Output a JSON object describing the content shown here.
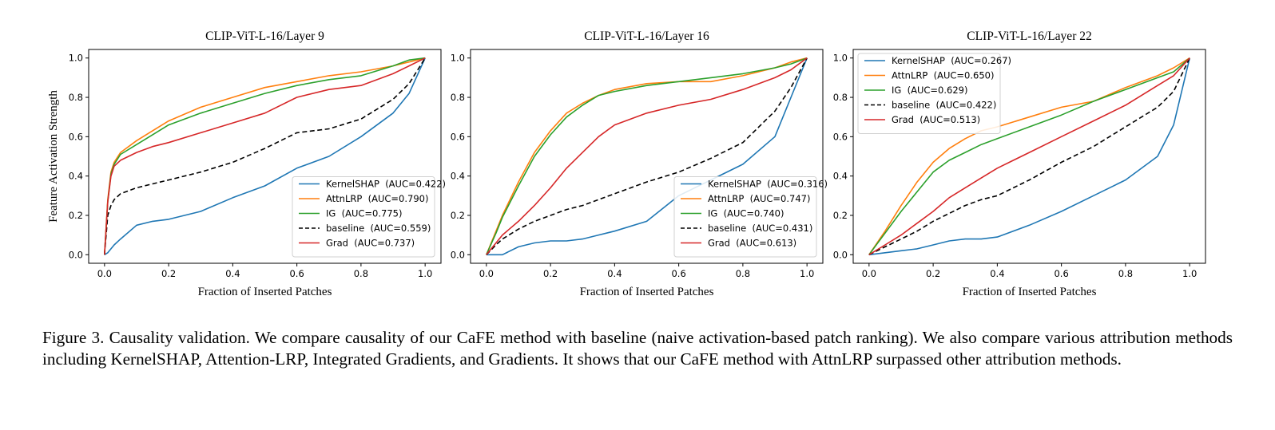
{
  "figure": {
    "caption": "Figure 3. Causality validation. We compare causality of our CaFE method with baseline (naive activation-based patch ranking). We also compare various attribution methods including KernelSHAP, Attention-LRP, Integrated Gradients, and Gradients. It shows that our CaFE method with AttnLRP surpassed other attribution methods.",
    "colors": {
      "KernelSHAP": "#1f77b4",
      "AttnLRP": "#ff7f0e",
      "IG": "#2ca02c",
      "baseline": "#000000",
      "Grad": "#d62728"
    }
  },
  "chart_data": [
    {
      "type": "line",
      "title": "CLIP-ViT-L-16/Layer 9",
      "xlabel": "Fraction of Inserted Patches",
      "ylabel": "Feature Activation Strength",
      "xlim": [
        0,
        1
      ],
      "ylim": [
        0,
        1
      ],
      "xticks": [
        "0.0",
        "0.2",
        "0.4",
        "0.6",
        "0.8",
        "1.0"
      ],
      "yticks": [
        "0.0",
        "0.2",
        "0.4",
        "0.6",
        "0.8",
        "1.0"
      ],
      "legend_position": "lower-right",
      "x": [
        0,
        0.01,
        0.02,
        0.03,
        0.05,
        0.1,
        0.15,
        0.2,
        0.3,
        0.4,
        0.5,
        0.6,
        0.7,
        0.8,
        0.9,
        0.95,
        1.0
      ],
      "series": [
        {
          "name": "KernelSHAP",
          "legend": "KernelSHAP  (AUC=0.422)",
          "style": "solid",
          "values": [
            0.0,
            0.01,
            0.03,
            0.05,
            0.08,
            0.15,
            0.17,
            0.18,
            0.22,
            0.29,
            0.35,
            0.44,
            0.5,
            0.6,
            0.72,
            0.82,
            1.0
          ]
        },
        {
          "name": "AttnLRP",
          "legend": "AttnLRP  (AUC=0.790)",
          "style": "solid",
          "values": [
            0.0,
            0.28,
            0.42,
            0.47,
            0.52,
            0.58,
            0.63,
            0.68,
            0.75,
            0.8,
            0.85,
            0.88,
            0.91,
            0.93,
            0.96,
            0.98,
            1.0
          ]
        },
        {
          "name": "IG",
          "legend": "IG  (AUC=0.775)",
          "style": "solid",
          "values": [
            0.0,
            0.27,
            0.41,
            0.46,
            0.51,
            0.56,
            0.61,
            0.66,
            0.72,
            0.77,
            0.82,
            0.86,
            0.89,
            0.91,
            0.96,
            0.99,
            1.0
          ]
        },
        {
          "name": "baseline",
          "legend": "baseline  (AUC=0.559)",
          "style": "dashed",
          "values": [
            0.0,
            0.2,
            0.25,
            0.28,
            0.31,
            0.34,
            0.36,
            0.38,
            0.42,
            0.47,
            0.54,
            0.62,
            0.64,
            0.69,
            0.79,
            0.87,
            1.0
          ]
        },
        {
          "name": "Grad",
          "legend": "Grad  (AUC=0.737)",
          "style": "solid",
          "values": [
            0.0,
            0.27,
            0.4,
            0.45,
            0.48,
            0.52,
            0.55,
            0.57,
            0.62,
            0.67,
            0.72,
            0.8,
            0.84,
            0.86,
            0.92,
            0.96,
            1.0
          ]
        }
      ]
    },
    {
      "type": "line",
      "title": "CLIP-ViT-L-16/Layer 16",
      "xlabel": "Fraction of Inserted Patches",
      "ylabel": "",
      "xlim": [
        0,
        1
      ],
      "ylim": [
        0,
        1
      ],
      "xticks": [
        "0.0",
        "0.2",
        "0.4",
        "0.6",
        "0.8",
        "1.0"
      ],
      "yticks": [
        "0.0",
        "0.2",
        "0.4",
        "0.6",
        "0.8",
        "1.0"
      ],
      "legend_position": "lower-right",
      "x": [
        0,
        0.03,
        0.05,
        0.1,
        0.15,
        0.2,
        0.25,
        0.3,
        0.35,
        0.4,
        0.5,
        0.6,
        0.7,
        0.8,
        0.9,
        0.95,
        1.0
      ],
      "series": [
        {
          "name": "KernelSHAP",
          "legend": "KernelSHAP  (AUC=0.316)",
          "style": "solid",
          "values": [
            0.0,
            0.0,
            0.0,
            0.04,
            0.06,
            0.07,
            0.07,
            0.08,
            0.1,
            0.12,
            0.17,
            0.3,
            0.38,
            0.46,
            0.6,
            0.8,
            1.0
          ]
        },
        {
          "name": "AttnLRP",
          "legend": "AttnLRP  (AUC=0.747)",
          "style": "solid",
          "values": [
            0.0,
            0.12,
            0.2,
            0.37,
            0.52,
            0.63,
            0.72,
            0.77,
            0.81,
            0.84,
            0.87,
            0.88,
            0.88,
            0.91,
            0.95,
            0.98,
            1.0
          ]
        },
        {
          "name": "IG",
          "legend": "IG  (AUC=0.740)",
          "style": "solid",
          "values": [
            0.0,
            0.11,
            0.19,
            0.35,
            0.5,
            0.61,
            0.7,
            0.76,
            0.81,
            0.83,
            0.86,
            0.88,
            0.9,
            0.92,
            0.95,
            0.97,
            1.0
          ]
        },
        {
          "name": "baseline",
          "legend": "baseline  (AUC=0.431)",
          "style": "dashed",
          "values": [
            0.0,
            0.05,
            0.08,
            0.13,
            0.17,
            0.2,
            0.23,
            0.25,
            0.28,
            0.31,
            0.37,
            0.42,
            0.49,
            0.57,
            0.73,
            0.85,
            1.0
          ]
        },
        {
          "name": "Grad",
          "legend": "Grad  (AUC=0.613)",
          "style": "solid",
          "values": [
            0.0,
            0.06,
            0.1,
            0.17,
            0.25,
            0.34,
            0.44,
            0.52,
            0.6,
            0.66,
            0.72,
            0.76,
            0.79,
            0.84,
            0.9,
            0.94,
            1.0
          ]
        }
      ]
    },
    {
      "type": "line",
      "title": "CLIP-ViT-L-16/Layer 22",
      "xlabel": "Fraction of Inserted Patches",
      "ylabel": "",
      "xlim": [
        0,
        1
      ],
      "ylim": [
        0,
        1
      ],
      "xticks": [
        "0.0",
        "0.2",
        "0.4",
        "0.6",
        "0.8",
        "1.0"
      ],
      "yticks": [
        "0.0",
        "0.2",
        "0.4",
        "0.6",
        "0.8",
        "1.0"
      ],
      "legend_position": "upper-left",
      "x": [
        0,
        0.05,
        0.1,
        0.15,
        0.2,
        0.25,
        0.3,
        0.35,
        0.4,
        0.5,
        0.6,
        0.7,
        0.8,
        0.9,
        0.95,
        1.0
      ],
      "series": [
        {
          "name": "KernelSHAP",
          "legend": "KernelSHAP  (AUC=0.267)",
          "style": "solid",
          "values": [
            0.0,
            0.01,
            0.02,
            0.03,
            0.05,
            0.07,
            0.08,
            0.08,
            0.09,
            0.15,
            0.22,
            0.3,
            0.38,
            0.5,
            0.66,
            1.0
          ]
        },
        {
          "name": "AttnLRP",
          "legend": "AttnLRP  (AUC=0.650)",
          "style": "solid",
          "values": [
            0.0,
            0.12,
            0.25,
            0.37,
            0.47,
            0.54,
            0.59,
            0.63,
            0.65,
            0.7,
            0.75,
            0.78,
            0.85,
            0.91,
            0.95,
            1.0
          ]
        },
        {
          "name": "IG",
          "legend": "IG  (AUC=0.629)",
          "style": "solid",
          "values": [
            0.0,
            0.11,
            0.22,
            0.32,
            0.42,
            0.48,
            0.52,
            0.56,
            0.59,
            0.65,
            0.71,
            0.78,
            0.84,
            0.9,
            0.93,
            1.0
          ]
        },
        {
          "name": "baseline",
          "legend": "baseline  (AUC=0.422)",
          "style": "dashed",
          "values": [
            0.0,
            0.04,
            0.08,
            0.12,
            0.17,
            0.21,
            0.25,
            0.28,
            0.3,
            0.38,
            0.47,
            0.55,
            0.65,
            0.75,
            0.83,
            1.0
          ]
        },
        {
          "name": "Grad",
          "legend": "Grad  (AUC=0.513)",
          "style": "solid",
          "values": [
            0.0,
            0.05,
            0.1,
            0.16,
            0.22,
            0.29,
            0.34,
            0.39,
            0.44,
            0.52,
            0.6,
            0.68,
            0.76,
            0.86,
            0.91,
            1.0
          ]
        }
      ]
    }
  ]
}
